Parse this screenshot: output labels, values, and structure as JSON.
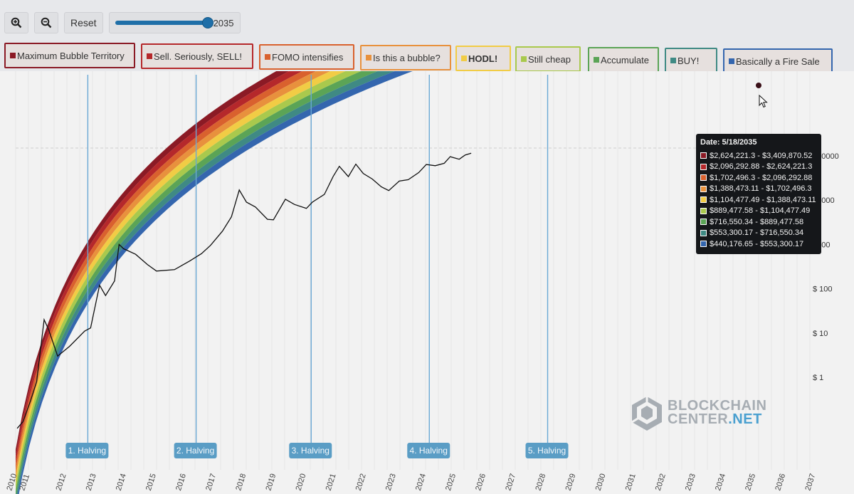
{
  "toolbar": {
    "zoom_in_icon": "zoom-in-icon",
    "zoom_out_icon": "zoom-out-icon",
    "reset_label": "Reset",
    "year_slider_value": "2035"
  },
  "legend": {
    "items": [
      {
        "label": "Maximum Bubble Territory",
        "color": "#8b1a25"
      },
      {
        "label": "Sell. Seriously, SELL!",
        "color": "#b5282b"
      },
      {
        "label": "FOMO intensifies",
        "color": "#d9612e"
      },
      {
        "label": "Is this a bubble?",
        "color": "#e8913d"
      },
      {
        "label": "HODL!",
        "color": "#f1cc45"
      },
      {
        "label": "Still cheap",
        "color": "#a9c94d"
      },
      {
        "label": "Accumulate",
        "color": "#5ba456"
      },
      {
        "label": "BUY!",
        "color": "#3f8a84"
      },
      {
        "label": "Basically a Fire Sale",
        "color": "#3466ae"
      }
    ]
  },
  "chart_data": {
    "type": "area",
    "x_axis": {
      "type": "date",
      "ticks": [
        "2010",
        "2011",
        "2012",
        "2013",
        "2014",
        "2015",
        "2016",
        "2017",
        "2018",
        "2019",
        "2020",
        "2021",
        "2022",
        "2023",
        "2024",
        "2025",
        "2026",
        "2027",
        "2028",
        "2029",
        "2030",
        "2031",
        "2032",
        "2033",
        "2034",
        "2035",
        "2036",
        "2037"
      ],
      "range": [
        "2010-06",
        "2037"
      ]
    },
    "y_axis": {
      "scale": "log",
      "ticks": [
        "$ 1",
        "$ 10",
        "$ 100",
        "1000",
        "10000",
        "100000"
      ],
      "tick_values": [
        1,
        10,
        100,
        1000,
        10000,
        100000
      ]
    },
    "bands": [
      "Maximum Bubble Territory",
      "Sell. Seriously, SELL!",
      "FOMO intensifies",
      "Is this a bubble?",
      "HODL!",
      "Still cheap",
      "Accumulate",
      "BUY!",
      "Basically a Fire Sale"
    ],
    "halvings": [
      {
        "label": "1. Halving",
        "date": "2012-11-28"
      },
      {
        "label": "2. Halving",
        "date": "2016-07-09"
      },
      {
        "label": "3. Halving",
        "date": "2020-05-11"
      },
      {
        "label": "4. Halving",
        "date": "2024-04-20"
      },
      {
        "label": "5. Halving",
        "date": "2028-04"
      }
    ],
    "price_series": {
      "dates": [
        "2010.55",
        "2010.75",
        "2011.0",
        "2011.2",
        "2011.45",
        "2011.6",
        "2011.9",
        "2012.3",
        "2012.8",
        "2013.0",
        "2013.3",
        "2013.5",
        "2013.8",
        "2013.95",
        "2014.1",
        "2014.5",
        "2014.9",
        "2015.2",
        "2015.8",
        "2016.3",
        "2016.7",
        "2017.0",
        "2017.4",
        "2017.7",
        "2017.96",
        "2018.2",
        "2018.5",
        "2018.9",
        "2019.1",
        "2019.5",
        "2019.8",
        "2020.2",
        "2020.4",
        "2020.8",
        "2021.1",
        "2021.3",
        "2021.6",
        "2021.85",
        "2022.1",
        "2022.4",
        "2022.7",
        "2022.95",
        "2023.3",
        "2023.6",
        "2023.95",
        "2024.2",
        "2024.5",
        "2024.8",
        "2025.0",
        "2025.3",
        "2025.5",
        "2025.7"
      ],
      "values": [
        0.07,
        0.1,
        0.3,
        0.8,
        20,
        12,
        3,
        5,
        11,
        13,
        120,
        70,
        150,
        1000,
        800,
        600,
        350,
        250,
        270,
        420,
        620,
        950,
        2000,
        4200,
        17000,
        9000,
        7000,
        3700,
        3600,
        10500,
        8000,
        6500,
        9000,
        13500,
        35000,
        58000,
        34000,
        65000,
        40000,
        30000,
        20000,
        16500,
        27000,
        29000,
        42000,
        64000,
        60000,
        68000,
        96000,
        84000,
        105000,
        115000
      ]
    },
    "tooltip": {
      "date": "Date: 5/18/2035",
      "rows": [
        {
          "text": "$2,624,221.3 - $3,409,870.52",
          "color": "#8b1a25"
        },
        {
          "text": "$2,096,292.88 - $2,624,221.3",
          "color": "#b5282b"
        },
        {
          "text": "$1,702,496.3 - $2,096,292.88",
          "color": "#d9612e"
        },
        {
          "text": "$1,388,473.11 - $1,702,496.3",
          "color": "#e8913d"
        },
        {
          "text": "$1,104,477.49 - $1,388,473.11",
          "color": "#f1cc45"
        },
        {
          "text": "$889,477.58 - $1,104,477.49",
          "color": "#a9c94d"
        },
        {
          "text": "$716,550.34 - $889,477.58",
          "color": "#5ba456"
        },
        {
          "text": "$553,300.17 - $716,550.34",
          "color": "#3f8a84"
        },
        {
          "text": "$440,176.65 - $553,300.17",
          "color": "#3466ae"
        }
      ]
    }
  },
  "watermark": {
    "line1": "BLOCKCHAIN",
    "line2a": "CENTER",
    "line2b": ".NET"
  }
}
